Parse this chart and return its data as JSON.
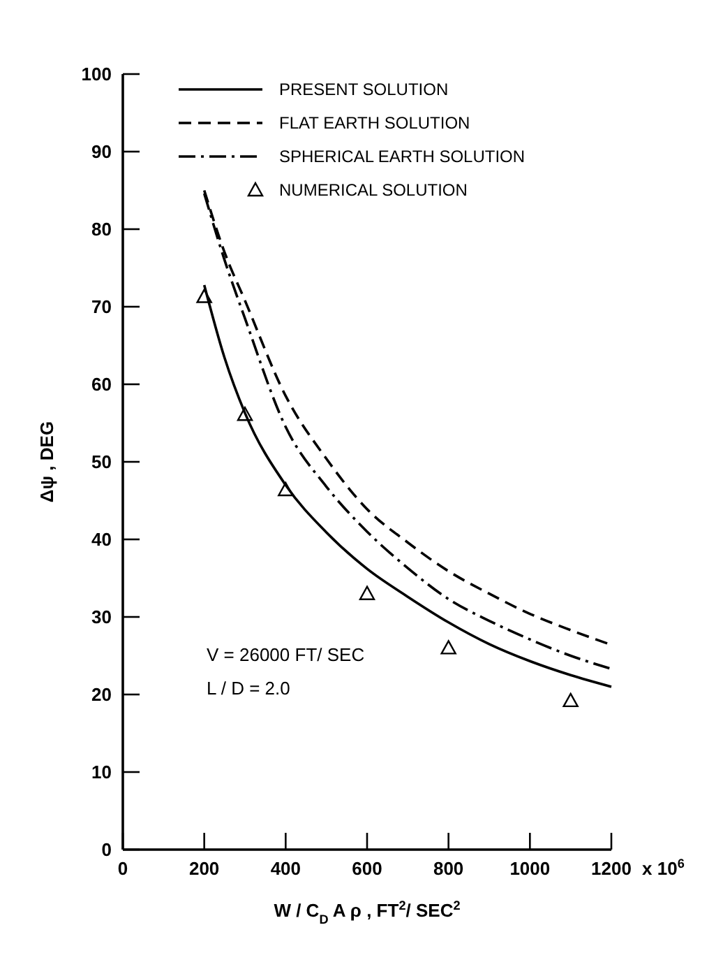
{
  "chart_data": {
    "type": "line",
    "xlabel": "W / C$_{D}$ A ρ , FT$^{2}$/ SEC$^{2}$",
    "ylabel": "Δψ , DEG",
    "xlim": [
      0,
      1200
    ],
    "xticks": [
      0,
      200,
      400,
      600,
      800,
      1000,
      1200
    ],
    "ylim": [
      0,
      100
    ],
    "yticks": [
      0,
      10,
      20,
      30,
      40,
      50,
      60,
      70,
      80,
      90,
      100
    ],
    "grid": false,
    "legend": "top",
    "marker": "none",
    "annotations": [
      "x 10$^{6}$",
      "V = 26000 FT/ SEC",
      "L / D = 2.0"
    ],
    "series": [
      {
        "name": "PRESENT SOLUTION",
        "line_style": "solid",
        "color": "#000000",
        "x": [
          200,
          250,
          300,
          400,
          500,
          600,
          700,
          800,
          900,
          1000,
          1100,
          1200
        ],
        "values": [
          72.8,
          63.4,
          56.3,
          47,
          40.9,
          36.2,
          32.6,
          29.3,
          26.5,
          24.3,
          22.5,
          21
        ]
      },
      {
        "name": "FLAT EARTH SOLUTION",
        "line_style": "dashed",
        "color": "#000000",
        "x": [
          200,
          250,
          300,
          400,
          500,
          600,
          700,
          800,
          900,
          1000,
          1100,
          1200
        ],
        "values": [
          85,
          77,
          70.8,
          58.5,
          50.4,
          43.9,
          39.6,
          35.9,
          33,
          30.4,
          28.3,
          26.4
        ]
      },
      {
        "name": "SPHERICAL EARTH SOLUTION",
        "line_style": "dashdot",
        "color": "#000000",
        "x": [
          200,
          250,
          300,
          400,
          500,
          600,
          700,
          800,
          900,
          1000,
          1100,
          1200
        ],
        "values": [
          84.6,
          76,
          68.5,
          54.5,
          46.8,
          41,
          36.3,
          32.3,
          29.5,
          27.1,
          25,
          23.3
        ]
      },
      {
        "name": "NUMERICAL SOLUTION",
        "type": "scatter",
        "marker": "triangle",
        "color": "#000000",
        "x": [
          200,
          300,
          400,
          600,
          800,
          1100
        ],
        "values": [
          71.3,
          56.1,
          46.4,
          33,
          26,
          19.2
        ]
      }
    ]
  }
}
